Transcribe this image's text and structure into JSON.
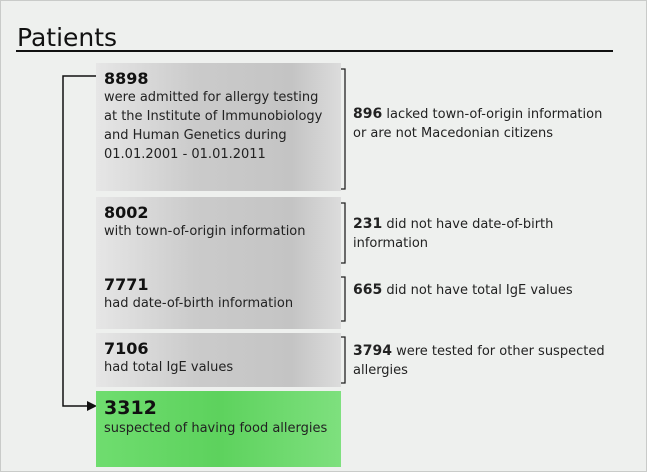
{
  "header": {
    "title": "Patients"
  },
  "nodes": [
    {
      "number": "8898",
      "text": "were admitted for allergy testing at the Institute of Immunobiology and Human Genetics during 01.01.2001 - 01.01.2011"
    },
    {
      "number": "8002",
      "text": "with town-of-origin information"
    },
    {
      "number": "7771",
      "text": "had date-of-birth information"
    },
    {
      "number": "7106",
      "text": "had total IgE values"
    },
    {
      "number": "3312",
      "text": "suspected of having food allergies"
    }
  ],
  "exclusions": [
    {
      "number": "896",
      "text": "lacked town-of-origin information or are not Macedonian citizens"
    },
    {
      "number": "231",
      "text": "did not have date-of-birth information"
    },
    {
      "number": "665",
      "text": "did not have total IgE values"
    },
    {
      "number": "3794",
      "text": "were tested for other suspected allergies"
    }
  ]
}
